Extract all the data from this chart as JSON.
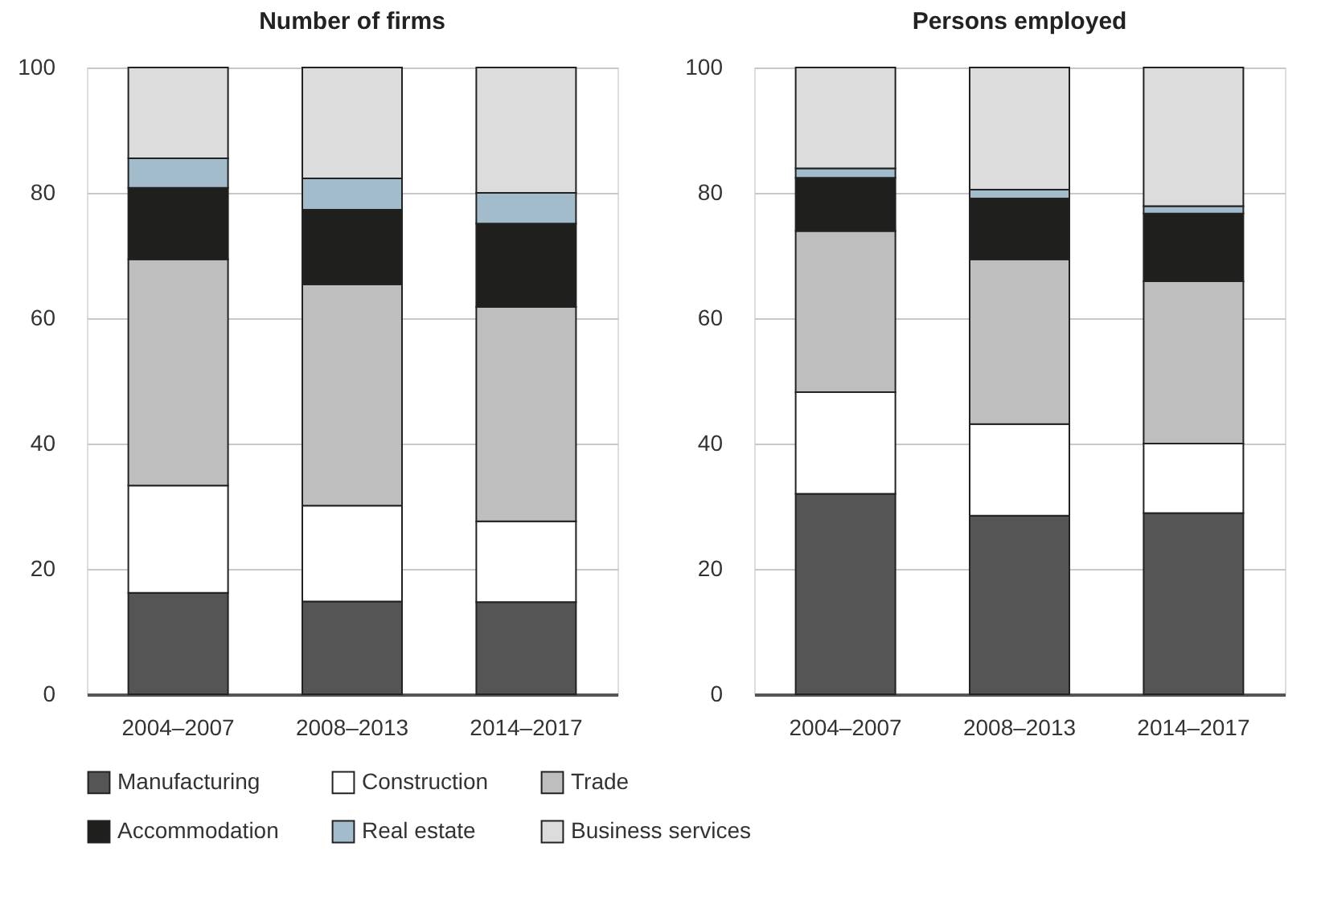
{
  "chart_data": [
    {
      "type": "bar",
      "stacked": true,
      "title": "Number of firms",
      "categories": [
        "2004–2007",
        "2008–2013",
        "2014–2017"
      ],
      "ylim": [
        0,
        100
      ],
      "yticks": [
        0,
        20,
        40,
        60,
        80,
        100
      ],
      "grid": "y",
      "legend": "bottom",
      "series": [
        {
          "name": "Manufacturing",
          "color": "#555555",
          "values": [
            16.2,
            14.8,
            14.7
          ]
        },
        {
          "name": "Construction",
          "color": "#ffffff",
          "values": [
            17.1,
            15.3,
            12.9
          ]
        },
        {
          "name": "Trade",
          "color": "#bdbebd",
          "values": [
            36.1,
            35.3,
            34.2
          ]
        },
        {
          "name": "Accommodation",
          "color": "#1f1f1e",
          "values": [
            11.4,
            11.9,
            13.3
          ]
        },
        {
          "name": "Real estate",
          "color": "#a3bccb",
          "values": [
            4.7,
            5.0,
            4.9
          ]
        },
        {
          "name": "Business services",
          "color": "#dcdcdc",
          "values": [
            14.5,
            17.7,
            20.0
          ]
        }
      ]
    },
    {
      "type": "bar",
      "stacked": true,
      "title": "Persons employed",
      "categories": [
        "2004–2007",
        "2008–2013",
        "2014–2017"
      ],
      "ylim": [
        0,
        100
      ],
      "yticks": [
        0,
        20,
        40,
        60,
        80,
        100
      ],
      "grid": "y",
      "legend": "bottom",
      "series": [
        {
          "name": "Manufacturing",
          "color": "#555555",
          "values": [
            32.0,
            28.5,
            28.9
          ]
        },
        {
          "name": "Construction",
          "color": "#ffffff",
          "values": [
            16.2,
            14.6,
            11.1
          ]
        },
        {
          "name": "Trade",
          "color": "#bdbebd",
          "values": [
            25.7,
            26.3,
            25.9
          ]
        },
        {
          "name": "Accommodation",
          "color": "#1f1f1e",
          "values": [
            8.5,
            9.7,
            10.8
          ]
        },
        {
          "name": "Real estate",
          "color": "#a3bccb",
          "values": [
            1.5,
            1.4,
            1.2
          ]
        },
        {
          "name": "Business services",
          "color": "#dcdcdc",
          "values": [
            16.1,
            19.5,
            22.1
          ]
        }
      ]
    }
  ]
}
